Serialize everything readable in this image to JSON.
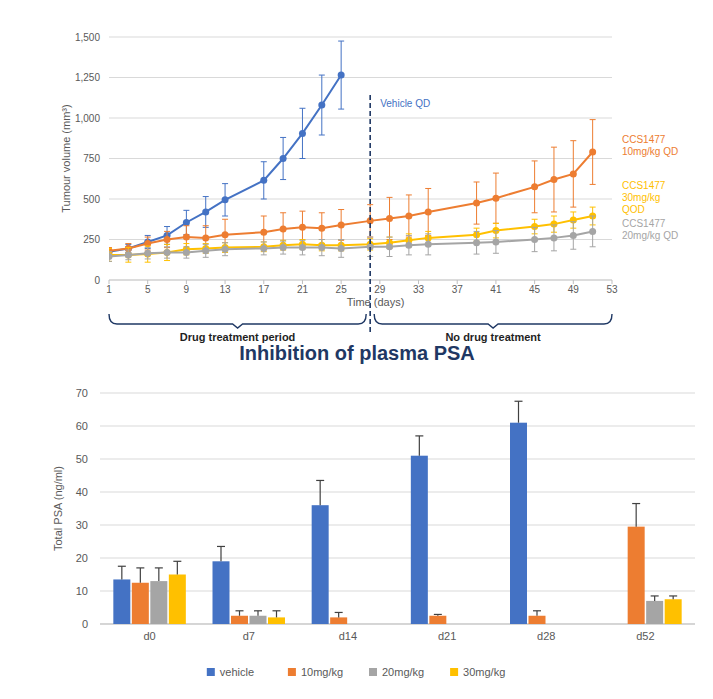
{
  "chart_data": [
    {
      "type": "line",
      "xlabel": "Time (days)",
      "ylabel": "Tumour volume (mm³)",
      "xlim": [
        1,
        53
      ],
      "xticks": [
        1,
        5,
        9,
        13,
        17,
        21,
        25,
        29,
        33,
        37,
        41,
        45,
        49,
        53
      ],
      "ylim": [
        0,
        1500
      ],
      "yticks": [
        0,
        250,
        500,
        750,
        {
          "value": 1000,
          "label": "1,000"
        },
        {
          "value": 1250,
          "label": "1,250"
        },
        {
          "value": 1500,
          "label": "1,500"
        }
      ],
      "grid": true,
      "marker": "circle",
      "series": [
        {
          "name": "Vehicle QD",
          "color": "#4472c4",
          "x": [
            1,
            3,
            5,
            7,
            9,
            11,
            13,
            17,
            19,
            21,
            23,
            25
          ],
          "values": [
            175,
            195,
            235,
            275,
            355,
            420,
            495,
            615,
            750,
            905,
            1080,
            1265
          ],
          "errors": [
            20,
            25,
            40,
            55,
            75,
            95,
            100,
            115,
            130,
            155,
            185,
            210
          ]
        },
        {
          "name": "CCS1477 10mg/kg QD",
          "color": "#ed7d31",
          "x": [
            1,
            3,
            5,
            7,
            9,
            11,
            13,
            17,
            19,
            21,
            23,
            25,
            28,
            30,
            32,
            34,
            39,
            41,
            45,
            47,
            49,
            51
          ],
          "values": [
            180,
            195,
            225,
            250,
            265,
            260,
            280,
            295,
            315,
            325,
            320,
            340,
            365,
            380,
            395,
            420,
            475,
            505,
            575,
            620,
            655,
            790
          ],
          "errors": [
            20,
            30,
            40,
            50,
            70,
            75,
            95,
            100,
            100,
            100,
            95,
            95,
            100,
            130,
            130,
            145,
            130,
            155,
            160,
            200,
            205,
            200
          ]
        },
        {
          "name": "CCS1477 30mg/kg QOD",
          "color": "#ffc000",
          "x": [
            1,
            3,
            5,
            7,
            9,
            11,
            13,
            17,
            19,
            21,
            23,
            25,
            28,
            30,
            32,
            34,
            39,
            41,
            45,
            47,
            49,
            51
          ],
          "values": [
            155,
            155,
            160,
            170,
            190,
            195,
            200,
            205,
            215,
            220,
            215,
            215,
            220,
            230,
            245,
            260,
            280,
            305,
            330,
            345,
            370,
            395
          ],
          "errors": [
            40,
            45,
            50,
            50,
            35,
            30,
            30,
            30,
            30,
            30,
            35,
            35,
            35,
            35,
            40,
            40,
            40,
            45,
            45,
            50,
            50,
            55
          ]
        },
        {
          "name": "CCS1477 20mg/kg QD",
          "color": "#a5a5a5",
          "x": [
            1,
            3,
            5,
            7,
            9,
            11,
            13,
            17,
            19,
            21,
            23,
            25,
            28,
            30,
            32,
            34,
            39,
            41,
            45,
            47,
            49,
            51
          ],
          "values": [
            145,
            155,
            165,
            170,
            170,
            180,
            190,
            195,
            200,
            200,
            200,
            195,
            205,
            205,
            215,
            220,
            230,
            235,
            250,
            260,
            275,
            300
          ],
          "errors": [
            30,
            30,
            35,
            35,
            35,
            40,
            40,
            40,
            40,
            45,
            50,
            55,
            60,
            60,
            60,
            65,
            70,
            70,
            75,
            80,
            85,
            95
          ]
        }
      ],
      "annotations": [
        {
          "x": 28
        },
        {
          "text": "Drug treatment period",
          "x": [
            1,
            28
          ]
        },
        {
          "text": "No drug treatment",
          "x": [
            28,
            53
          ]
        }
      ]
    },
    {
      "type": "bar",
      "title": "Inhibition of plasma PSA",
      "ylabel": "Total PSA (ng/ml)",
      "categories": [
        "d0",
        "d7",
        "d14",
        "d21",
        "d28",
        "d52"
      ],
      "ylim": [
        0,
        70
      ],
      "yticks": [
        0,
        10,
        20,
        30,
        40,
        50,
        60,
        70
      ],
      "grid": true,
      "legend": "bottom",
      "series": [
        {
          "name": "vehicle",
          "color": "#4472c4",
          "values": [
            13.5,
            19,
            36,
            51,
            61,
            null
          ],
          "errors": [
            4,
            4.5,
            7.5,
            6,
            6.5,
            null
          ]
        },
        {
          "name": "10mg/kg",
          "color": "#ed7d31",
          "values": [
            12.5,
            2.5,
            2,
            2.5,
            2.5,
            29.5
          ],
          "errors": [
            4.5,
            1.5,
            1.5,
            0.4,
            1.5,
            7
          ]
        },
        {
          "name": "20mg/kg",
          "color": "#a5a5a5",
          "values": [
            13,
            2.5,
            null,
            null,
            null,
            7
          ],
          "errors": [
            4,
            1.5,
            null,
            null,
            null,
            1.5
          ]
        },
        {
          "name": "30mg/kg",
          "color": "#ffc000",
          "values": [
            15,
            2,
            null,
            null,
            null,
            7.5
          ],
          "errors": [
            4,
            2,
            null,
            null,
            null,
            1
          ]
        }
      ]
    }
  ]
}
